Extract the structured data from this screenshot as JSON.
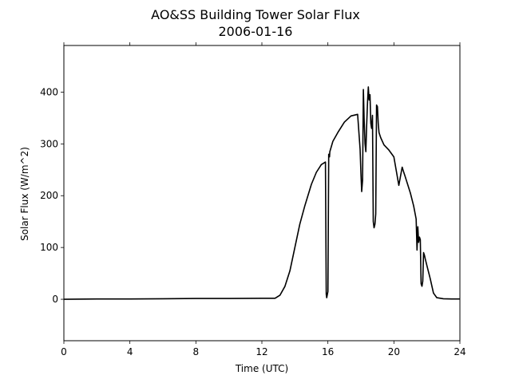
{
  "chart_data": {
    "type": "line",
    "title": "AO&SS Building Tower Solar Flux",
    "subtitle": "2006-01-16",
    "xlabel": "Time (UTC)",
    "ylabel": "Solar Flux (W/m^2)",
    "xlim": [
      0,
      24
    ],
    "ylim": [
      -80,
      490
    ],
    "xticks": [
      0,
      4,
      8,
      12,
      16,
      20,
      24
    ],
    "yticks": [
      0,
      100,
      200,
      300,
      400
    ],
    "grid": false,
    "legend": "none",
    "series": [
      {
        "color": "#000000",
        "x": [
          0,
          2,
          4,
          6,
          8,
          10,
          12,
          12.8,
          13.1,
          13.4,
          13.7,
          14.0,
          14.3,
          14.6,
          15.0,
          15.3,
          15.6,
          15.85,
          15.9,
          15.93,
          16.0,
          16.05,
          16.1,
          16.12,
          16.3,
          16.6,
          17.0,
          17.4,
          17.8,
          17.95,
          18.0,
          18.05,
          18.1,
          18.15,
          18.2,
          18.25,
          18.3,
          18.35,
          18.4,
          18.45,
          18.5,
          18.55,
          18.6,
          18.65,
          18.7,
          18.75,
          18.8,
          18.85,
          18.9,
          18.95,
          19.0,
          19.05,
          19.1,
          19.2,
          19.4,
          19.7,
          20.0,
          20.3,
          20.5,
          20.55,
          20.6,
          20.65,
          20.8,
          21.0,
          21.2,
          21.35,
          21.4,
          21.45,
          21.5,
          21.55,
          21.6,
          21.65,
          21.7,
          21.75,
          21.8,
          21.85,
          21.9,
          22.0,
          22.2,
          22.4,
          22.6,
          23.0,
          23.5,
          24.0
        ],
        "y": [
          0,
          0.5,
          0.5,
          1,
          1.5,
          1.5,
          2,
          2,
          8,
          25,
          55,
          100,
          145,
          180,
          222,
          245,
          260,
          265,
          10,
          3,
          15,
          280,
          275,
          285,
          305,
          322,
          342,
          354,
          357,
          290,
          245,
          208,
          230,
          405,
          345,
          300,
          285,
          335,
          380,
          410,
          385,
          395,
          340,
          330,
          355,
          150,
          138,
          145,
          165,
          375,
          372,
          340,
          322,
          312,
          298,
          288,
          275,
          220,
          255,
          250,
          245,
          240,
          225,
          205,
          180,
          155,
          95,
          140,
          110,
          120,
          115,
          30,
          25,
          35,
          90,
          85,
          78,
          65,
          40,
          12,
          3,
          1,
          0.5,
          0.5
        ]
      }
    ]
  }
}
